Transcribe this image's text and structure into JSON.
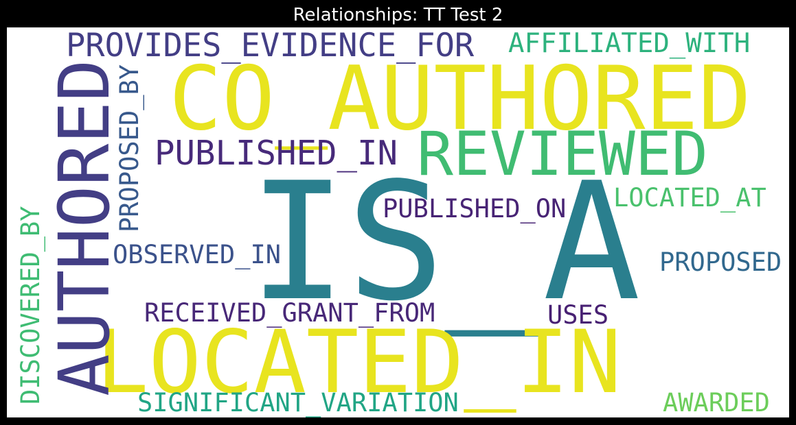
{
  "title": "Relationships: TT Test 2",
  "words": [
    {
      "text": "IS_A",
      "color": "#2a7f8e"
    },
    {
      "text": "CO_AUTHORED",
      "color": "#e8e41f"
    },
    {
      "text": "LOCATED_IN",
      "color": "#e8e41f"
    },
    {
      "text": "AUTHORED",
      "color": "#433e85"
    },
    {
      "text": "REVIEWED",
      "color": "#40bc72"
    },
    {
      "text": "PROVIDES_EVIDENCE_FOR",
      "color": "#433e85"
    },
    {
      "text": "AFFILIATED_WITH",
      "color": "#2db27d"
    },
    {
      "text": "PUBLISHED_IN",
      "color": "#472a7a"
    },
    {
      "text": "PROPOSED_BY",
      "color": "#38598c"
    },
    {
      "text": "PUBLISHED_ON",
      "color": "#482475"
    },
    {
      "text": "LOCATED_AT",
      "color": "#4ac16d"
    },
    {
      "text": "OBSERVED_IN",
      "color": "#3b528b"
    },
    {
      "text": "PROPOSED",
      "color": "#31688e"
    },
    {
      "text": "DISCOVERED_BY",
      "color": "#3fbc73"
    },
    {
      "text": "RECEIVED_GRANT_FROM",
      "color": "#482878"
    },
    {
      "text": "USES",
      "color": "#482173"
    },
    {
      "text": "SIGNIFICANT_VARIATION",
      "color": "#21a585"
    },
    {
      "text": "AWARDED",
      "color": "#6ccd5a"
    }
  ]
}
